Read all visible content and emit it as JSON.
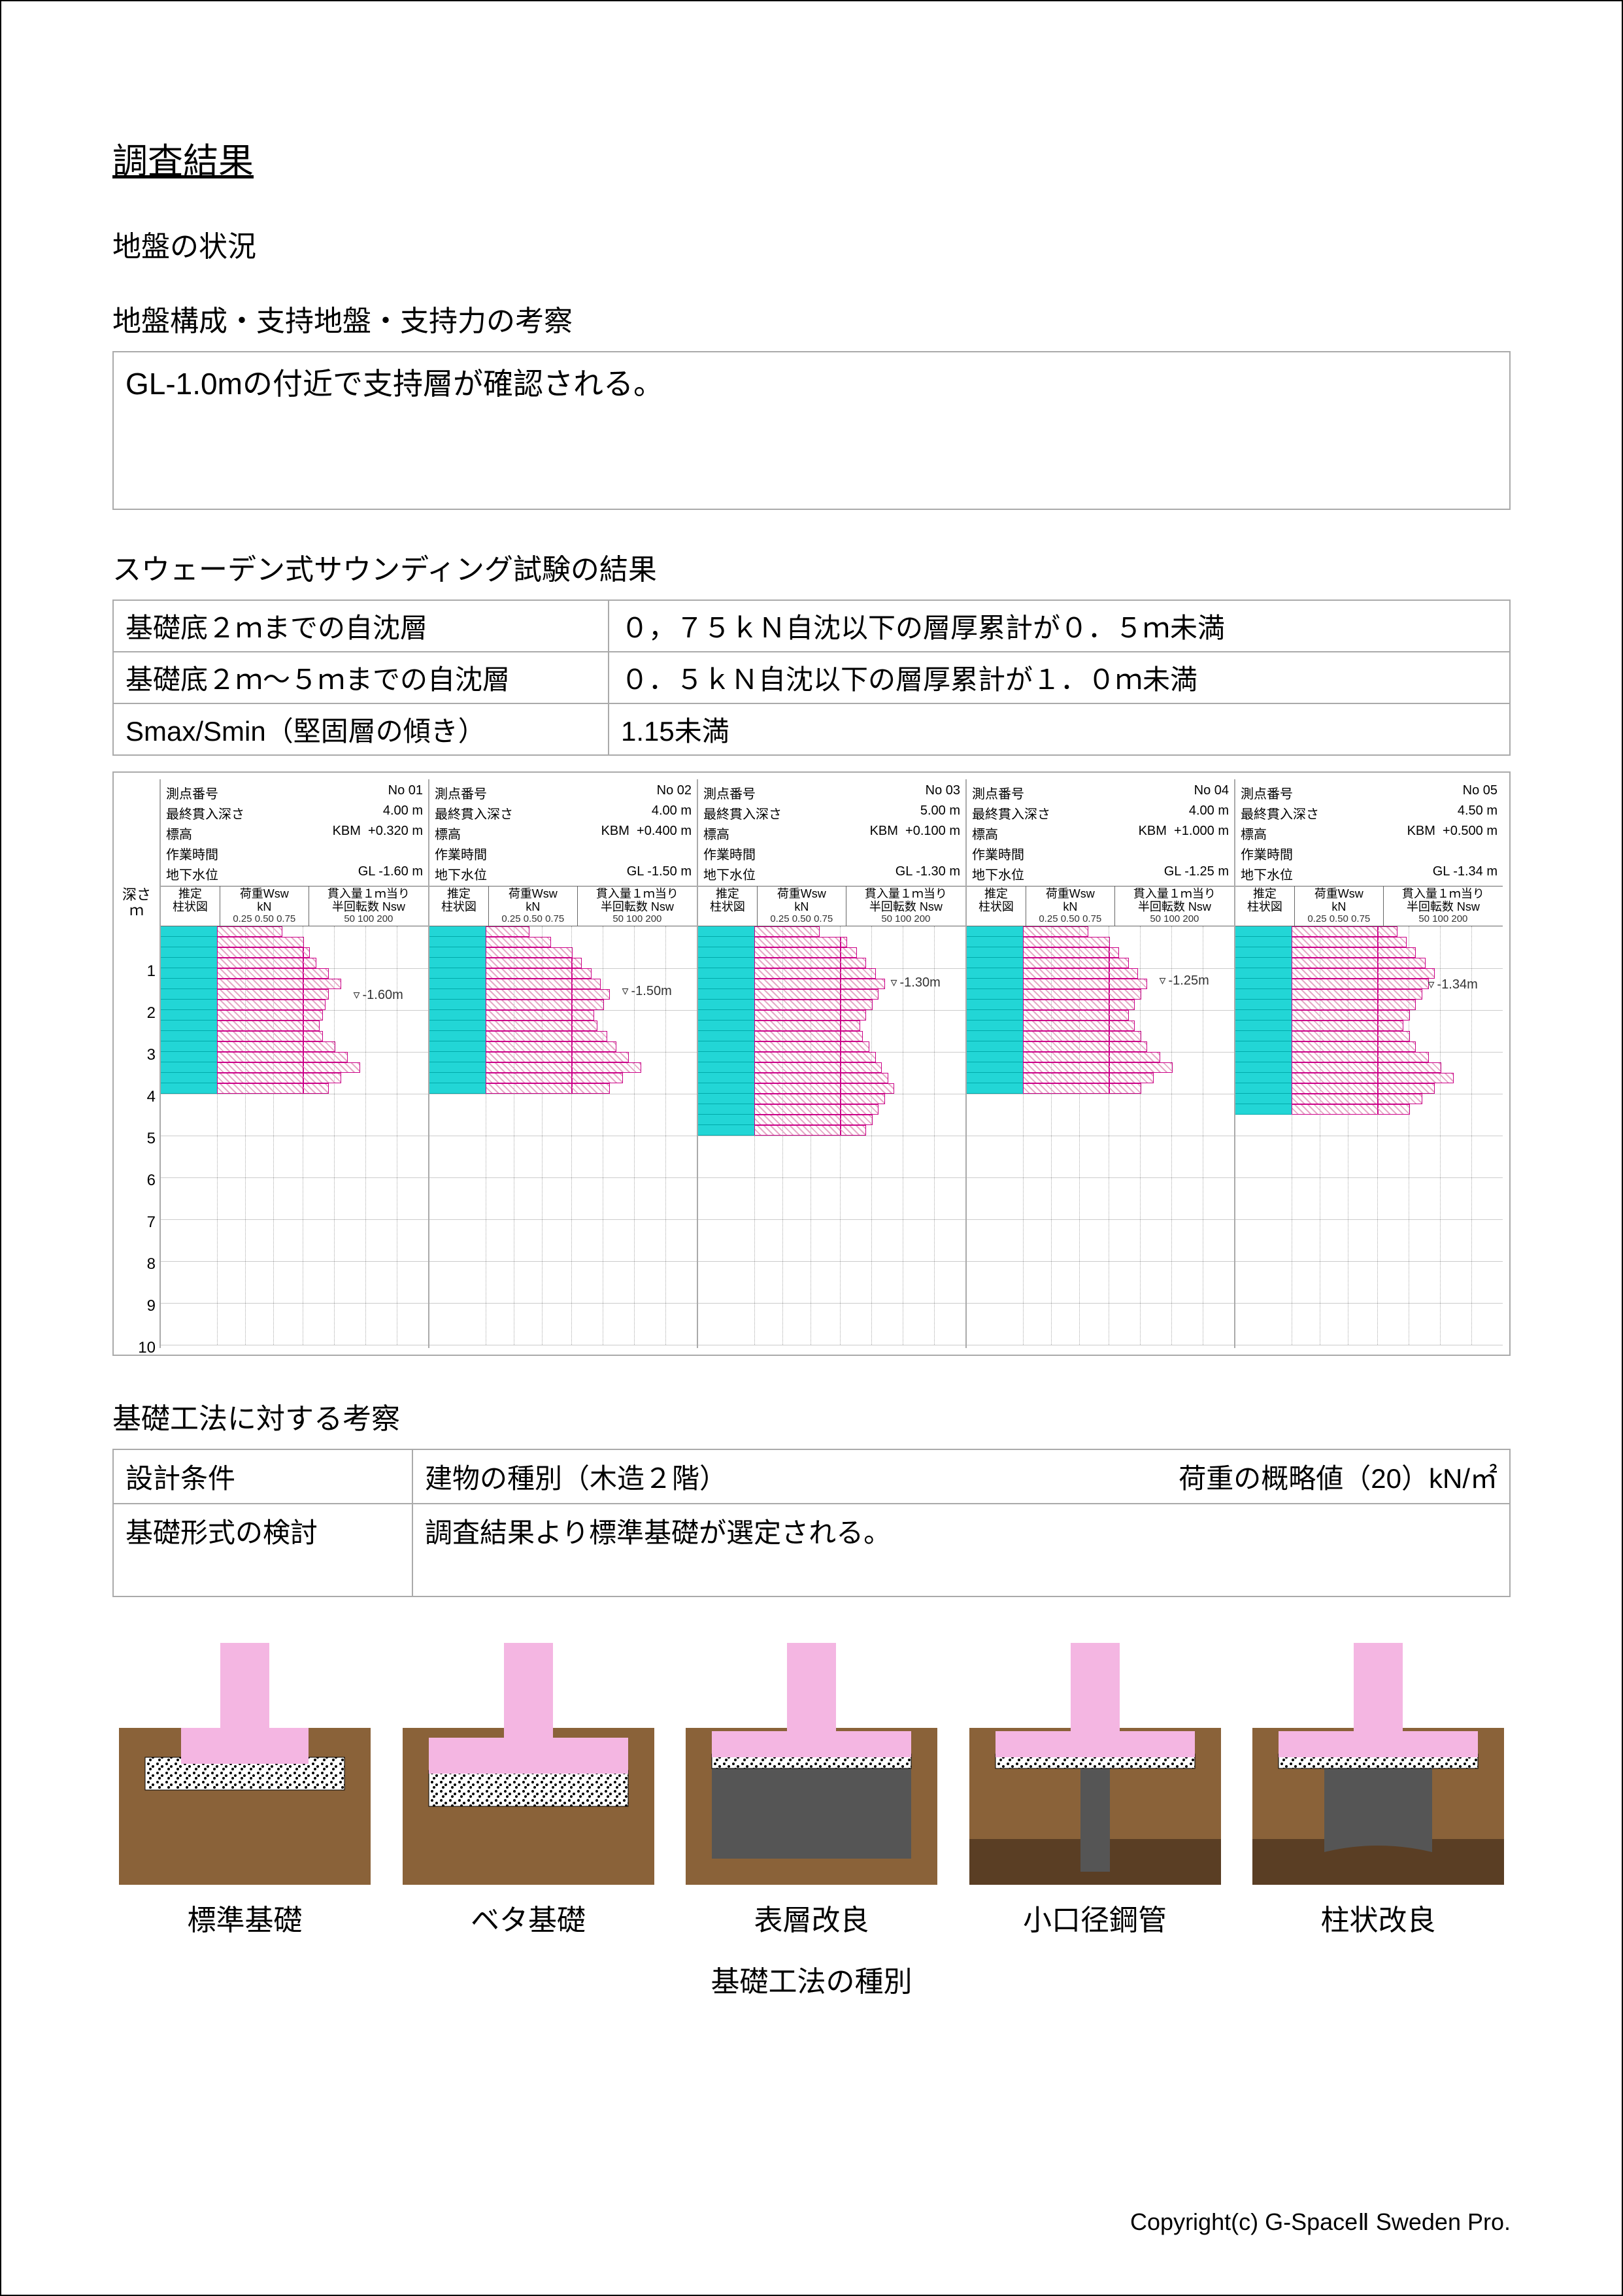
{
  "title": "調査結果",
  "ground_situation_label": "地盤の状況",
  "composition_label": "地盤構成・支持地盤・支持力の考察",
  "observation_text": "GL-1.0mの付近で支持層が確認される。",
  "sounding_label": "スウェーデン式サウンディング試験の結果",
  "sounding_rows": [
    {
      "l": "基礎底２ｍまでの自沈層",
      "r": "０，７５ｋＮ自沈以下の層厚累計が０．５ｍ未満"
    },
    {
      "l": "基礎底２ｍ～５ｍまでの自沈層",
      "r": "０．５ｋＮ自沈以下の層厚累計が１．０ｍ未満"
    },
    {
      "l": "Smax/Smin（堅固層の傾き）",
      "r": "1.15未満"
    }
  ],
  "depth_axis": {
    "title_a": "深さ",
    "title_b": "ｍ",
    "max": 10
  },
  "chart_header_labels": {
    "point": "測点番号",
    "finaldepth": "最終貫入深さ",
    "elev": "標高",
    "kbm": "KBM",
    "worktime": "作業時間",
    "water": "地下水位",
    "col_a": "推定\n柱状図",
    "col_b": "荷重Wsw\nkN",
    "col_b_sub": "0.25 0.50 0.75",
    "col_c": "貫入量１ｍ当り\n半回転数 Nsw",
    "col_c_sub": "50  100  200"
  },
  "chart_colors": {
    "depth_bar": "#22d6d6",
    "hatch": "#e6a8c6",
    "hatch_border": "#c06090",
    "grid": "#cccccc"
  },
  "charts": [
    {
      "no": "No 01",
      "final": "4.00 m",
      "elev": "+0.320 m",
      "water": "GL -1.60 m",
      "water_depth": 1.6,
      "penetration_depth": 4.0,
      "rows": [
        {
          "d": 0.25,
          "wsw": 0.75,
          "nsw": 0
        },
        {
          "d": 0.25,
          "wsw": 1.0,
          "nsw": 0
        },
        {
          "d": 0.25,
          "wsw": 1.0,
          "nsw": 10
        },
        {
          "d": 0.25,
          "wsw": 1.0,
          "nsw": 20
        },
        {
          "d": 0.25,
          "wsw": 1.0,
          "nsw": 40
        },
        {
          "d": 0.25,
          "wsw": 1.0,
          "nsw": 60
        },
        {
          "d": 0.25,
          "wsw": 1.0,
          "nsw": 40
        },
        {
          "d": 0.25,
          "wsw": 1.0,
          "nsw": 35
        },
        {
          "d": 0.25,
          "wsw": 1.0,
          "nsw": 30
        },
        {
          "d": 0.25,
          "wsw": 1.0,
          "nsw": 25
        },
        {
          "d": 0.25,
          "wsw": 1.0,
          "nsw": 30
        },
        {
          "d": 0.25,
          "wsw": 1.0,
          "nsw": 50
        },
        {
          "d": 0.25,
          "wsw": 1.0,
          "nsw": 70
        },
        {
          "d": 0.25,
          "wsw": 1.0,
          "nsw": 90
        },
        {
          "d": 0.25,
          "wsw": 1.0,
          "nsw": 60
        },
        {
          "d": 0.25,
          "wsw": 1.0,
          "nsw": 40
        }
      ]
    },
    {
      "no": "No 02",
      "final": "4.00 m",
      "elev": "+0.400 m",
      "water": "GL -1.50 m",
      "water_depth": 1.5,
      "penetration_depth": 4.0,
      "rows": [
        {
          "d": 0.25,
          "wsw": 0.5,
          "nsw": 0
        },
        {
          "d": 0.25,
          "wsw": 0.75,
          "nsw": 0
        },
        {
          "d": 0.25,
          "wsw": 1.0,
          "nsw": 0
        },
        {
          "d": 0.25,
          "wsw": 1.0,
          "nsw": 15
        },
        {
          "d": 0.25,
          "wsw": 1.0,
          "nsw": 30
        },
        {
          "d": 0.25,
          "wsw": 1.0,
          "nsw": 45
        },
        {
          "d": 0.25,
          "wsw": 1.0,
          "nsw": 60
        },
        {
          "d": 0.25,
          "wsw": 1.0,
          "nsw": 50
        },
        {
          "d": 0.25,
          "wsw": 1.0,
          "nsw": 35
        },
        {
          "d": 0.25,
          "wsw": 1.0,
          "nsw": 40
        },
        {
          "d": 0.25,
          "wsw": 1.0,
          "nsw": 55
        },
        {
          "d": 0.25,
          "wsw": 1.0,
          "nsw": 70
        },
        {
          "d": 0.25,
          "wsw": 1.0,
          "nsw": 90
        },
        {
          "d": 0.25,
          "wsw": 1.0,
          "nsw": 110
        },
        {
          "d": 0.25,
          "wsw": 1.0,
          "nsw": 80
        },
        {
          "d": 0.25,
          "wsw": 1.0,
          "nsw": 60
        }
      ]
    },
    {
      "no": "No 03",
      "final": "5.00 m",
      "elev": "+0.100 m",
      "water": "GL -1.30 m",
      "water_depth": 1.3,
      "penetration_depth": 5.0,
      "rows": [
        {
          "d": 0.25,
          "wsw": 0.75,
          "nsw": 0
        },
        {
          "d": 0.25,
          "wsw": 1.0,
          "nsw": 10
        },
        {
          "d": 0.25,
          "wsw": 1.0,
          "nsw": 25
        },
        {
          "d": 0.25,
          "wsw": 1.0,
          "nsw": 40
        },
        {
          "d": 0.25,
          "wsw": 1.0,
          "nsw": 55
        },
        {
          "d": 0.25,
          "wsw": 1.0,
          "nsw": 70
        },
        {
          "d": 0.25,
          "wsw": 1.0,
          "nsw": 60
        },
        {
          "d": 0.25,
          "wsw": 1.0,
          "nsw": 50
        },
        {
          "d": 0.25,
          "wsw": 1.0,
          "nsw": 40
        },
        {
          "d": 0.25,
          "wsw": 1.0,
          "nsw": 30
        },
        {
          "d": 0.25,
          "wsw": 1.0,
          "nsw": 35
        },
        {
          "d": 0.25,
          "wsw": 1.0,
          "nsw": 45
        },
        {
          "d": 0.25,
          "wsw": 1.0,
          "nsw": 55
        },
        {
          "d": 0.25,
          "wsw": 1.0,
          "nsw": 65
        },
        {
          "d": 0.25,
          "wsw": 1.0,
          "nsw": 75
        },
        {
          "d": 0.25,
          "wsw": 1.0,
          "nsw": 85
        },
        {
          "d": 0.25,
          "wsw": 1.0,
          "nsw": 70
        },
        {
          "d": 0.25,
          "wsw": 1.0,
          "nsw": 60
        },
        {
          "d": 0.25,
          "wsw": 1.0,
          "nsw": 50
        },
        {
          "d": 0.25,
          "wsw": 1.0,
          "nsw": 40
        }
      ]
    },
    {
      "no": "No 04",
      "final": "4.00 m",
      "elev": "+1.000 m",
      "water": "GL -1.25 m",
      "water_depth": 1.25,
      "penetration_depth": 4.0,
      "rows": [
        {
          "d": 0.25,
          "wsw": 0.75,
          "nsw": 0
        },
        {
          "d": 0.25,
          "wsw": 1.0,
          "nsw": 0
        },
        {
          "d": 0.25,
          "wsw": 1.0,
          "nsw": 15
        },
        {
          "d": 0.25,
          "wsw": 1.0,
          "nsw": 30
        },
        {
          "d": 0.25,
          "wsw": 1.0,
          "nsw": 45
        },
        {
          "d": 0.25,
          "wsw": 1.0,
          "nsw": 60
        },
        {
          "d": 0.25,
          "wsw": 1.0,
          "nsw": 50
        },
        {
          "d": 0.25,
          "wsw": 1.0,
          "nsw": 40
        },
        {
          "d": 0.25,
          "wsw": 1.0,
          "nsw": 30
        },
        {
          "d": 0.25,
          "wsw": 1.0,
          "nsw": 40
        },
        {
          "d": 0.25,
          "wsw": 1.0,
          "nsw": 50
        },
        {
          "d": 0.25,
          "wsw": 1.0,
          "nsw": 60
        },
        {
          "d": 0.25,
          "wsw": 1.0,
          "nsw": 80
        },
        {
          "d": 0.25,
          "wsw": 1.0,
          "nsw": 100
        },
        {
          "d": 0.25,
          "wsw": 1.0,
          "nsw": 70
        },
        {
          "d": 0.25,
          "wsw": 1.0,
          "nsw": 50
        }
      ]
    },
    {
      "no": "No 05",
      "final": "4.50 m",
      "elev": "+0.500 m",
      "water": "GL -1.34 m",
      "water_depth": 1.34,
      "penetration_depth": 4.5,
      "rows": [
        {
          "d": 0.25,
          "wsw": 1.0,
          "nsw": 30
        },
        {
          "d": 0.25,
          "wsw": 1.0,
          "nsw": 45
        },
        {
          "d": 0.25,
          "wsw": 1.0,
          "nsw": 60
        },
        {
          "d": 0.25,
          "wsw": 1.0,
          "nsw": 75
        },
        {
          "d": 0.25,
          "wsw": 1.0,
          "nsw": 90
        },
        {
          "d": 0.25,
          "wsw": 1.0,
          "nsw": 80
        },
        {
          "d": 0.25,
          "wsw": 1.0,
          "nsw": 70
        },
        {
          "d": 0.25,
          "wsw": 1.0,
          "nsw": 60
        },
        {
          "d": 0.25,
          "wsw": 1.0,
          "nsw": 50
        },
        {
          "d": 0.25,
          "wsw": 1.0,
          "nsw": 40
        },
        {
          "d": 0.25,
          "wsw": 1.0,
          "nsw": 50
        },
        {
          "d": 0.25,
          "wsw": 1.0,
          "nsw": 60
        },
        {
          "d": 0.25,
          "wsw": 1.0,
          "nsw": 80
        },
        {
          "d": 0.25,
          "wsw": 1.0,
          "nsw": 100
        },
        {
          "d": 0.25,
          "wsw": 1.0,
          "nsw": 120
        },
        {
          "d": 0.25,
          "wsw": 1.0,
          "nsw": 90
        },
        {
          "d": 0.25,
          "wsw": 1.0,
          "nsw": 70
        },
        {
          "d": 0.25,
          "wsw": 1.0,
          "nsw": 50
        }
      ]
    }
  ],
  "design_label": "基礎工法に対する考察",
  "design_row1": {
    "lbl": "設計条件",
    "mid": "建物の種別（木造２階）",
    "right": "荷重の概略値（20）kN/㎡"
  },
  "design_row2": {
    "lbl": "基礎形式の検討",
    "text": "調査結果より標準基礎が選定される。"
  },
  "foundations": [
    {
      "label": "標準基礎",
      "type": "standard"
    },
    {
      "label": "ベタ基礎",
      "type": "mat"
    },
    {
      "label": "表層改良",
      "type": "surface"
    },
    {
      "label": "小口径鋼管",
      "type": "pipe"
    },
    {
      "label": "柱状改良",
      "type": "column"
    }
  ],
  "foundations_title": "基礎工法の種別",
  "foundation_colors": {
    "soil": "#8a6239",
    "concrete": "#f4b6e2",
    "gravel_bg": "#ffffff",
    "dark": "#555555",
    "deep_soil": "#5a3e24"
  },
  "copyright": "Copyright(c) G-SpaceⅡ Sweden Pro."
}
